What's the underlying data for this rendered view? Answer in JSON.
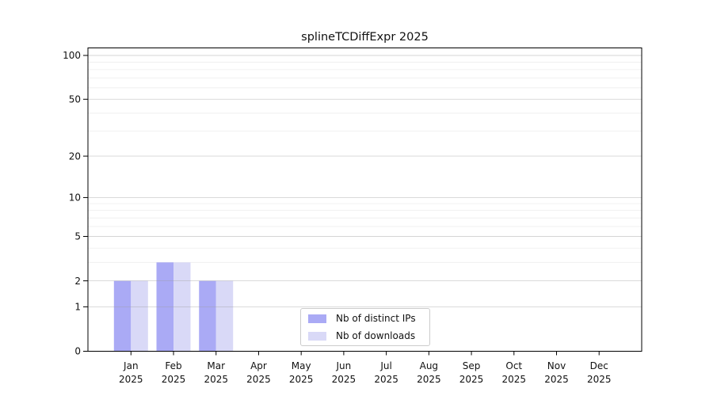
{
  "chart_data": {
    "type": "bar",
    "title": "splineTCDiffExpr 2025",
    "categories": [
      "Jan",
      "Feb",
      "Mar",
      "Apr",
      "May",
      "Jun",
      "Jul",
      "Aug",
      "Sep",
      "Oct",
      "Nov",
      "Dec"
    ],
    "year_label": "2025",
    "series": [
      {
        "name": "Nb of distinct IPs",
        "color": "#aaaaf5",
        "values": [
          2,
          3,
          2,
          0,
          0,
          0,
          0,
          0,
          0,
          0,
          0,
          0
        ]
      },
      {
        "name": "Nb of downloads",
        "color": "#d9d9f7",
        "values": [
          2,
          3,
          2,
          0,
          0,
          0,
          0,
          0,
          0,
          0,
          0,
          0
        ]
      }
    ],
    "yscale": "log1p",
    "ylim": [
      0,
      100
    ],
    "yticks": [
      0,
      1,
      2,
      5,
      10,
      20,
      50,
      100
    ],
    "yticks_minor": [
      3,
      4,
      6,
      7,
      8,
      9,
      30,
      40,
      60,
      70,
      80,
      90
    ],
    "grid": "horizontal",
    "legend_position": "lower center"
  },
  "colors": {
    "bar_distinct_ips": "#aaaaf5",
    "bar_downloads": "#d9d9f7",
    "major_grid": "#9a9a9a",
    "minor_grid": "#ededed",
    "frame": "#000000",
    "text": "#111111",
    "legend_border": "#cccccc"
  }
}
